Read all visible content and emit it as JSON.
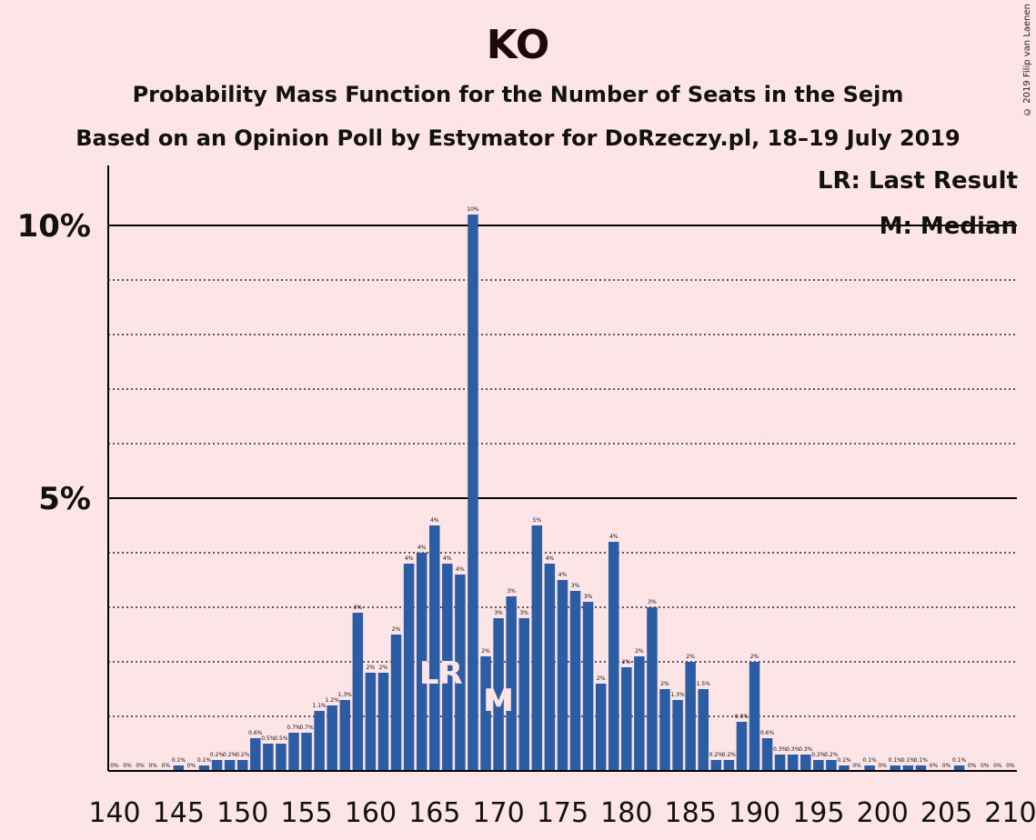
{
  "title": "KO",
  "subtitle": "Probability Mass Function for the Number of Seats in the Sejm",
  "subtitle2": "Based on an Opinion Poll by Estymator for DoRzeczy.pl, 18–19 July 2019",
  "copyright": "© 2019 Filip van Laenen",
  "legend": {
    "lr": "LR: Last Result",
    "m": "M: Median"
  },
  "colors": {
    "bar": "#2c5da4",
    "background": "#fde4e7"
  },
  "chart_data": {
    "type": "bar",
    "x_start": 140,
    "x_end": 210,
    "xticks": [
      140,
      145,
      150,
      155,
      160,
      165,
      170,
      175,
      180,
      185,
      190,
      195,
      200,
      205,
      210
    ],
    "ylim": [
      0,
      11
    ],
    "yticks_solid": [
      {
        "value": 5,
        "label": "5%"
      },
      {
        "value": 10,
        "label": "10%"
      }
    ],
    "grid_dotted": [
      1,
      2,
      3,
      4,
      6,
      7,
      8,
      9
    ],
    "last_result": 165,
    "median": 170,
    "lr_label": "LR",
    "median_label": "M",
    "values": [
      0,
      0,
      0,
      0,
      0,
      0.1,
      0,
      0.1,
      0.2,
      0.2,
      0.2,
      0.6,
      0.5,
      0.5,
      0.7,
      0.7,
      1.1,
      1.2,
      1.3,
      2.9,
      1.8,
      1.8,
      2.5,
      3.8,
      4.0,
      4.5,
      3.8,
      3.6,
      10.2,
      2.1,
      2.8,
      3.2,
      2.8,
      4.5,
      3.8,
      3.5,
      3.3,
      3.1,
      1.6,
      4.2,
      1.9,
      2.1,
      3.0,
      1.5,
      1.3,
      2.0,
      1.5,
      0.2,
      0.2,
      0.9,
      2.0,
      0.6,
      0.3,
      0.3,
      0.3,
      0.2,
      0.2,
      0.1,
      0,
      0.1,
      0,
      0.1,
      0.1,
      0.1,
      0,
      0,
      0.1,
      0,
      0,
      0,
      0
    ],
    "labels": [
      "0%",
      "0%",
      "0%",
      "0%",
      "0%",
      "0.1%",
      "0%",
      "0.1%",
      "0.2%",
      "0.2%",
      "0.2%",
      "0.6%",
      "0.5%",
      "0.5%",
      "0.7%",
      "0.7%",
      "1.1%",
      "1.2%",
      "1.3%",
      "3%",
      "2%",
      "2%",
      "2%",
      "4%",
      "4%",
      "4%",
      "4%",
      "4%",
      "10%",
      "2%",
      "3%",
      "3%",
      "3%",
      "5%",
      "4%",
      "4%",
      "3%",
      "3%",
      "2%",
      "4%",
      "2%",
      "2%",
      "3%",
      "2%",
      "1.3%",
      "2%",
      "1.5%",
      "0.2%",
      "0.2%",
      "0.9%",
      "2%",
      "0.6%",
      "0.3%",
      "0.3%",
      "0.3%",
      "0.2%",
      "0.2%",
      "0.1%",
      "0%",
      "0.1%",
      "0%",
      "0.1%",
      "0.1%",
      "0.1%",
      "0%",
      "0%",
      "0.1%",
      "0%",
      "0%",
      "0%",
      "0%"
    ]
  }
}
